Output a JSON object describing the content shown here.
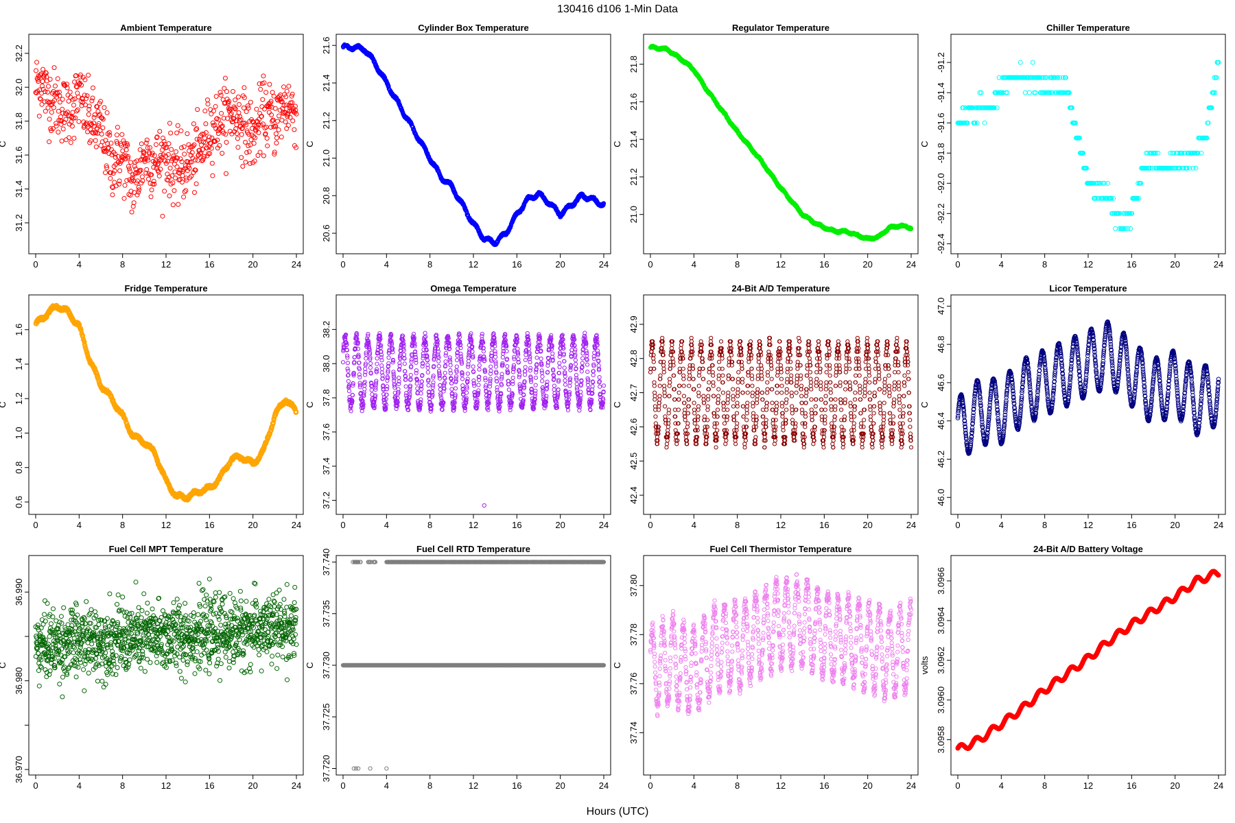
{
  "figure": {
    "title": "130416   d106   1-Min Data",
    "xlabel": "Hours (UTC)"
  },
  "chart_data": [
    {
      "type": "scatter",
      "title": "Ambient Temperature",
      "ylabel": "C",
      "color": "#ff0000",
      "xlim": [
        0,
        24
      ],
      "xticks": [
        0,
        4,
        8,
        12,
        16,
        20,
        24
      ],
      "ylim": [
        31.05,
        32.28
      ],
      "yticks": [
        31.2,
        31.4,
        31.6,
        31.8,
        32.0,
        32.2
      ],
      "ytick_labels": [
        "31.2",
        "31.4",
        "31.6",
        "31.8",
        "32.0",
        "32.2"
      ],
      "n": 720,
      "trend": [
        [
          0,
          32.0
        ],
        [
          0.5,
          32.05
        ],
        [
          1,
          31.95
        ],
        [
          2,
          31.9
        ],
        [
          3,
          31.85
        ],
        [
          4,
          31.95
        ],
        [
          5,
          31.8
        ],
        [
          6,
          31.75
        ],
        [
          7,
          31.55
        ],
        [
          8,
          31.6
        ],
        [
          9,
          31.4
        ],
        [
          10,
          31.6
        ],
        [
          11,
          31.55
        ],
        [
          12,
          31.6
        ],
        [
          13,
          31.5
        ],
        [
          14,
          31.55
        ],
        [
          15,
          31.6
        ],
        [
          16,
          31.75
        ],
        [
          17,
          31.8
        ],
        [
          18,
          31.85
        ],
        [
          19,
          31.8
        ],
        [
          20,
          31.7
        ],
        [
          21,
          31.85
        ],
        [
          22,
          31.8
        ],
        [
          23,
          31.9
        ],
        [
          24,
          31.85
        ]
      ],
      "noise": 0.18,
      "osc_amp": 0,
      "osc_period": 1,
      "pattern": "noise",
      "radius": 3
    },
    {
      "type": "scatter",
      "title": "Cylinder Box Temperature",
      "ylabel": "C",
      "color": "#0000ff",
      "xlim": [
        0,
        24
      ],
      "xticks": [
        0,
        4,
        8,
        12,
        16,
        20,
        24
      ],
      "ylim": [
        20.52,
        21.63
      ],
      "yticks": [
        20.6,
        20.8,
        21.0,
        21.2,
        21.4,
        21.6
      ],
      "ytick_labels": [
        "20.6",
        "20.8",
        "21.0",
        "21.2",
        "21.4",
        "21.6"
      ],
      "n": 1440,
      "trend": [
        [
          0,
          21.59
        ],
        [
          1,
          21.59
        ],
        [
          2,
          21.58
        ],
        [
          3,
          21.5
        ],
        [
          4,
          21.4
        ],
        [
          5,
          21.3
        ],
        [
          6,
          21.2
        ],
        [
          7,
          21.1
        ],
        [
          8,
          21.0
        ],
        [
          9,
          20.9
        ],
        [
          10,
          20.85
        ],
        [
          11,
          20.75
        ],
        [
          12,
          20.65
        ],
        [
          13,
          20.57
        ],
        [
          14,
          20.55
        ],
        [
          15,
          20.6
        ],
        [
          16,
          20.7
        ],
        [
          17,
          20.78
        ],
        [
          18,
          20.81
        ],
        [
          19,
          20.76
        ],
        [
          20,
          20.7
        ],
        [
          21,
          20.75
        ],
        [
          22,
          20.8
        ],
        [
          23,
          20.78
        ],
        [
          24,
          20.75
        ]
      ],
      "noise": 0.006,
      "osc_amp": 0.01,
      "osc_period": 1.2,
      "pattern": "smooth",
      "radius": 2.6
    },
    {
      "type": "scatter",
      "title": "Regulator Temperature",
      "ylabel": "C",
      "color": "#00ee00",
      "xlim": [
        0,
        24
      ],
      "xticks": [
        0,
        4,
        8,
        12,
        16,
        20,
        24
      ],
      "ylim": [
        20.82,
        21.93
      ],
      "yticks": [
        21.0,
        21.2,
        21.4,
        21.6,
        21.8
      ],
      "ytick_labels": [
        "21.0",
        "21.2",
        "21.4",
        "21.6",
        "21.8"
      ],
      "n": 1440,
      "trend": [
        [
          0,
          21.89
        ],
        [
          1.5,
          21.88
        ],
        [
          3,
          21.82
        ],
        [
          4,
          21.77
        ],
        [
          5,
          21.68
        ],
        [
          6,
          21.6
        ],
        [
          7,
          21.52
        ],
        [
          8,
          21.44
        ],
        [
          9,
          21.37
        ],
        [
          10,
          21.3
        ],
        [
          11,
          21.22
        ],
        [
          12,
          21.14
        ],
        [
          13,
          21.07
        ],
        [
          14,
          21.0
        ],
        [
          15,
          20.96
        ],
        [
          16,
          20.93
        ],
        [
          17,
          20.91
        ],
        [
          18,
          20.91
        ],
        [
          19,
          20.89
        ],
        [
          20,
          20.87
        ],
        [
          21,
          20.88
        ],
        [
          22,
          20.93
        ],
        [
          23,
          20.94
        ],
        [
          24,
          20.93
        ]
      ],
      "noise": 0.005,
      "osc_amp": 0.004,
      "osc_period": 1.1,
      "pattern": "smooth",
      "radius": 2.6
    },
    {
      "type": "scatter",
      "title": "Chiller Temperature",
      "ylabel": "C",
      "color": "#00ffff",
      "xlim": [
        0,
        24
      ],
      "xticks": [
        0,
        4,
        8,
        12,
        16,
        20,
        24
      ],
      "ylim": [
        -92.43,
        -91.05
      ],
      "yticks": [
        -92.4,
        -92.2,
        -92.0,
        -91.8,
        -91.6,
        -91.4,
        -91.2
      ],
      "ytick_labels": [
        "-92.4",
        "-92.2",
        "-92.0",
        "-91.8",
        "-91.6",
        "-91.4",
        "-91.2"
      ],
      "n": 380,
      "trend": [
        [
          0,
          -91.6
        ],
        [
          1,
          -91.55
        ],
        [
          2,
          -91.5
        ],
        [
          3,
          -91.5
        ],
        [
          4,
          -91.35
        ],
        [
          5,
          -91.3
        ],
        [
          6,
          -91.3
        ],
        [
          7,
          -91.3
        ],
        [
          8,
          -91.35
        ],
        [
          9,
          -91.35
        ],
        [
          10,
          -91.35
        ],
        [
          11,
          -91.7
        ],
        [
          12,
          -92.0
        ],
        [
          13,
          -92.05
        ],
        [
          14,
          -92.1
        ],
        [
          15,
          -92.3
        ],
        [
          16,
          -92.2
        ],
        [
          17,
          -91.9
        ],
        [
          18,
          -91.85
        ],
        [
          19,
          -91.9
        ],
        [
          20,
          -91.85
        ],
        [
          21,
          -91.85
        ],
        [
          22,
          -91.8
        ],
        [
          23,
          -91.6
        ],
        [
          24,
          -91.2
        ]
      ],
      "noise": 0.06,
      "osc_amp": 0,
      "osc_period": 1,
      "pattern": "quantized",
      "quantum": 0.1,
      "radius": 3
    },
    {
      "type": "scatter",
      "title": "Fridge Temperature",
      "ylabel": "C",
      "color": "#ffa500",
      "xlim": [
        0,
        24
      ],
      "xticks": [
        0,
        4,
        8,
        12,
        16,
        20,
        24
      ],
      "ylim": [
        0.56,
        1.77
      ],
      "yticks": [
        0.6,
        0.8,
        1.0,
        1.2,
        1.4,
        1.6
      ],
      "ytick_labels": [
        "0.6",
        "0.8",
        "1.0",
        "1.2",
        "1.4",
        "1.6"
      ],
      "n": 1440,
      "trend": [
        [
          0,
          1.63
        ],
        [
          1,
          1.69
        ],
        [
          2,
          1.74
        ],
        [
          3,
          1.7
        ],
        [
          4,
          1.62
        ],
        [
          5,
          1.42
        ],
        [
          6,
          1.28
        ],
        [
          7,
          1.2
        ],
        [
          8,
          1.1
        ],
        [
          9,
          0.98
        ],
        [
          10,
          0.95
        ],
        [
          11,
          0.88
        ],
        [
          12,
          0.72
        ],
        [
          13,
          0.63
        ],
        [
          14,
          0.63
        ],
        [
          15,
          0.66
        ],
        [
          16,
          0.68
        ],
        [
          17,
          0.74
        ],
        [
          18,
          0.85
        ],
        [
          19,
          0.86
        ],
        [
          20,
          0.82
        ],
        [
          21,
          0.9
        ],
        [
          22,
          1.1
        ],
        [
          23,
          1.2
        ],
        [
          24,
          1.12
        ]
      ],
      "noise": 0.01,
      "osc_amp": 0.012,
      "osc_period": 1.3,
      "pattern": "smooth",
      "radius": 2.8
    },
    {
      "type": "scatter",
      "title": "Omega Temperature",
      "ylabel": "C",
      "color": "#a020f0",
      "xlim": [
        0,
        24
      ],
      "xticks": [
        0,
        4,
        8,
        12,
        16,
        20,
        24
      ],
      "ylim": [
        37.15,
        38.37
      ],
      "yticks": [
        37.2,
        37.4,
        37.6,
        37.8,
        38.0,
        38.2
      ],
      "ytick_labels": [
        "37.2",
        "37.4",
        "37.6",
        "37.8",
        "38.0",
        "38.2"
      ],
      "n": 1440,
      "trend": [
        [
          0,
          37.95
        ],
        [
          24,
          37.95
        ]
      ],
      "noise": 0.03,
      "osc_amp": 0.2,
      "osc_period": 1.05,
      "pattern": "oscillate",
      "radius": 2.6
    },
    {
      "type": "scatter",
      "title": "24-Bit A/D Temperature",
      "ylabel": "C",
      "color": "#8b0000",
      "xlim": [
        0,
        24
      ],
      "xticks": [
        0,
        4,
        8,
        12,
        16,
        20,
        24
      ],
      "ylim": [
        42.36,
        42.97
      ],
      "yticks": [
        42.4,
        42.5,
        42.6,
        42.7,
        42.8,
        42.9
      ],
      "ytick_labels": [
        "42.4",
        "42.5",
        "42.6",
        "42.7",
        "42.8",
        "42.9"
      ],
      "n": 1440,
      "trend": [
        [
          0,
          42.7
        ],
        [
          24,
          42.7
        ]
      ],
      "noise": 0.02,
      "osc_amp": 0.14,
      "osc_period": 0.9,
      "pattern": "oscillate",
      "quantum": 0.01,
      "radius": 2.6
    },
    {
      "type": "scatter",
      "title": "Licor Temperature",
      "ylabel": "C",
      "color": "#000080",
      "xlim": [
        0,
        24
      ],
      "xticks": [
        0,
        4,
        8,
        12,
        16,
        20,
        24
      ],
      "ylim": [
        45.94,
        47.03
      ],
      "yticks": [
        46.0,
        46.2,
        46.4,
        46.6,
        46.8,
        47.0
      ],
      "ytick_labels": [
        "46.0",
        "46.2",
        "46.4",
        "46.6",
        "46.8",
        "47.0"
      ],
      "n": 1440,
      "trend": [
        [
          0,
          46.35
        ],
        [
          2,
          46.45
        ],
        [
          4,
          46.45
        ],
        [
          6,
          46.55
        ],
        [
          8,
          46.6
        ],
        [
          10,
          46.65
        ],
        [
          12,
          46.7
        ],
        [
          14,
          46.75
        ],
        [
          16,
          46.65
        ],
        [
          18,
          46.55
        ],
        [
          20,
          46.6
        ],
        [
          22,
          46.5
        ],
        [
          24,
          46.55
        ]
      ],
      "noise": 0.005,
      "osc_amp": 0.17,
      "osc_period": 1.5,
      "pattern": "smooth",
      "radius": 2.8
    },
    {
      "type": "scatter",
      "title": "Fuel Cell MPT Temperature",
      "ylabel": "C",
      "color": "#006400",
      "xlim": [
        0,
        24
      ],
      "xticks": [
        0,
        4,
        8,
        12,
        16,
        20,
        24
      ],
      "ylim": [
        36.97,
        36.9935
      ],
      "yticks": [
        36.97,
        36.975,
        36.98,
        36.985,
        36.99
      ],
      "ytick_labels": [
        "36.970",
        "",
        "36.980",
        "",
        "36.990"
      ],
      "n": 1300,
      "trend": [
        [
          0,
          36.984
        ],
        [
          12,
          36.985
        ],
        [
          24,
          36.986
        ]
      ],
      "noise": 0.0035,
      "osc_amp": 0,
      "osc_period": 1,
      "pattern": "noise",
      "radius": 3
    },
    {
      "type": "scatter",
      "title": "Fuel Cell RTD Temperature",
      "ylabel": "C",
      "color": "#7f7f7f",
      "xlim": [
        0,
        24
      ],
      "xticks": [
        0,
        4,
        8,
        12,
        16,
        20,
        24
      ],
      "ylim": [
        37.7199,
        37.7401
      ],
      "yticks": [
        37.72,
        37.725,
        37.73,
        37.735,
        37.74
      ],
      "ytick_labels": [
        "37.720",
        "37.725",
        "37.730",
        "37.735",
        "37.740"
      ],
      "n": 1440,
      "trend": [
        [
          0,
          37.73
        ],
        [
          24,
          37.73
        ]
      ],
      "noise": 0,
      "osc_amp": 0,
      "osc_period": 1,
      "pattern": "rtd",
      "radius": 2.6
    },
    {
      "type": "scatter",
      "title": "Fuel Cell Thermistor Temperature",
      "ylabel": "C",
      "color": "#ee82ee",
      "xlim": [
        0,
        24
      ],
      "xticks": [
        0,
        4,
        8,
        12,
        16,
        20,
        24
      ],
      "ylim": [
        37.725,
        37.81
      ],
      "yticks": [
        37.74,
        37.76,
        37.78,
        37.8
      ],
      "ytick_labels": [
        "37.74",
        "37.76",
        "37.78",
        "37.80"
      ],
      "n": 1440,
      "trend": [
        [
          0,
          37.765
        ],
        [
          2,
          37.77
        ],
        [
          4,
          37.765
        ],
        [
          6,
          37.775
        ],
        [
          8,
          37.775
        ],
        [
          10,
          37.78
        ],
        [
          12,
          37.785
        ],
        [
          14,
          37.785
        ],
        [
          16,
          37.78
        ],
        [
          18,
          37.778
        ],
        [
          20,
          37.775
        ],
        [
          22,
          37.772
        ],
        [
          24,
          37.775
        ]
      ],
      "noise": 0.003,
      "osc_amp": 0.017,
      "osc_period": 0.95,
      "pattern": "oscillate",
      "radius": 2.6
    },
    {
      "type": "scatter",
      "title": "24-Bit A/D Battery Voltage",
      "ylabel": "volts",
      "color": "#ff0000",
      "xlim": [
        0,
        24
      ],
      "xticks": [
        0,
        4,
        8,
        12,
        16,
        20,
        24
      ],
      "ylim": [
        3.09565,
        3.0967
      ],
      "yticks": [
        3.0958,
        3.096,
        3.0962,
        3.0964,
        3.0966
      ],
      "ytick_labels": [
        "3.0958",
        "3.0960",
        "3.0962",
        "3.0964",
        "3.0966"
      ],
      "n": 1440,
      "trend": [
        [
          0,
          3.09575
        ],
        [
          2,
          3.0958
        ],
        [
          4,
          3.09588
        ],
        [
          6,
          3.09596
        ],
        [
          8,
          3.09605
        ],
        [
          10,
          3.09613
        ],
        [
          12,
          3.09621
        ],
        [
          14,
          3.0963
        ],
        [
          16,
          3.09638
        ],
        [
          18,
          3.09645
        ],
        [
          20,
          3.09652
        ],
        [
          22,
          3.0966
        ],
        [
          24,
          3.09664
        ]
      ],
      "noise": 8e-07,
      "osc_amp": 1.8e-05,
      "osc_period": 1.45,
      "pattern": "smooth",
      "radius": 3
    }
  ]
}
